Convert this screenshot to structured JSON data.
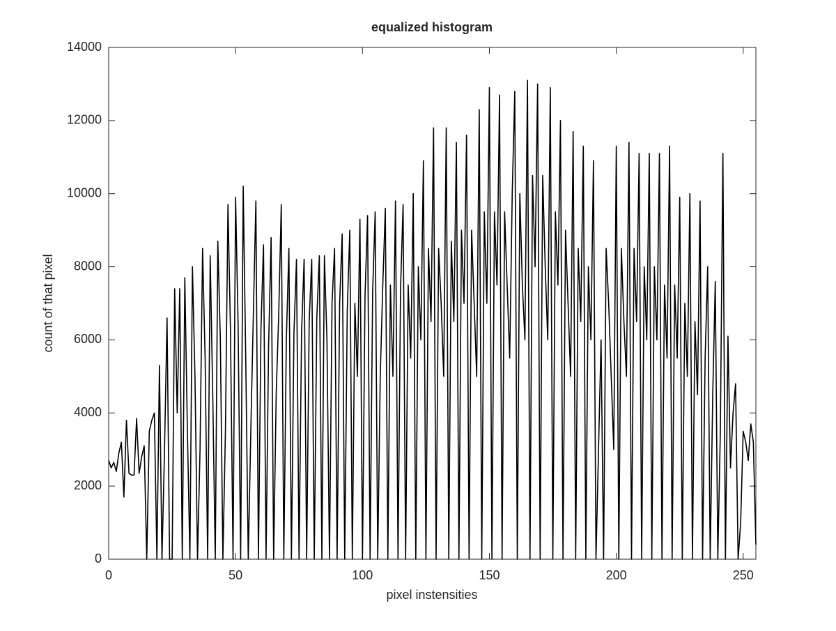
{
  "chart_data": {
    "type": "line",
    "title": "equalized histogram",
    "x_label": "pixel instensities",
    "y_label": "count of that pixel",
    "color": "#000000",
    "xlim": [
      0,
      255
    ],
    "xticks": [
      0,
      50,
      100,
      150,
      200,
      250
    ],
    "ylim": [
      0,
      14000
    ],
    "yticks": [
      0,
      2000,
      4000,
      6000,
      8000,
      10000,
      12000,
      14000
    ],
    "grid": false,
    "x": [
      0,
      1,
      2,
      3,
      4,
      5,
      6,
      7,
      8,
      9,
      10,
      11,
      12,
      13,
      14,
      15,
      16,
      17,
      18,
      19,
      20,
      21,
      22,
      23,
      24,
      25,
      26,
      27,
      28,
      29,
      30,
      31,
      32,
      33,
      34,
      35,
      36,
      37,
      38,
      39,
      40,
      41,
      42,
      43,
      44,
      45,
      46,
      47,
      48,
      49,
      50,
      51,
      52,
      53,
      54,
      55,
      56,
      57,
      58,
      59,
      60,
      61,
      62,
      63,
      64,
      65,
      66,
      67,
      68,
      69,
      70,
      71,
      72,
      73,
      74,
      75,
      76,
      77,
      78,
      79,
      80,
      81,
      82,
      83,
      84,
      85,
      86,
      87,
      88,
      89,
      90,
      91,
      92,
      93,
      94,
      95,
      96,
      97,
      98,
      99,
      100,
      101,
      102,
      103,
      104,
      105,
      106,
      107,
      108,
      109,
      110,
      111,
      112,
      113,
      114,
      115,
      116,
      117,
      118,
      119,
      120,
      121,
      122,
      123,
      124,
      125,
      126,
      127,
      128,
      129,
      130,
      131,
      132,
      133,
      134,
      135,
      136,
      137,
      138,
      139,
      140,
      141,
      142,
      143,
      144,
      145,
      146,
      147,
      148,
      149,
      150,
      151,
      152,
      153,
      154,
      155,
      156,
      157,
      158,
      159,
      160,
      161,
      162,
      163,
      164,
      165,
      166,
      167,
      168,
      169,
      170,
      171,
      172,
      173,
      174,
      175,
      176,
      177,
      178,
      179,
      180,
      181,
      182,
      183,
      184,
      185,
      186,
      187,
      188,
      189,
      190,
      191,
      192,
      193,
      194,
      195,
      196,
      197,
      198,
      199,
      200,
      201,
      202,
      203,
      204,
      205,
      206,
      207,
      208,
      209,
      210,
      211,
      212,
      213,
      214,
      215,
      216,
      217,
      218,
      219,
      220,
      221,
      222,
      223,
      224,
      225,
      226,
      227,
      228,
      229,
      230,
      231,
      232,
      233,
      234,
      235,
      236,
      237,
      238,
      239,
      240,
      241,
      242,
      243,
      244,
      245,
      246,
      247,
      248,
      249,
      250,
      251,
      252,
      253,
      254,
      255
    ],
    "values": [
      2700,
      2500,
      2650,
      2400,
      2900,
      3200,
      1700,
      3800,
      2350,
      2300,
      2300,
      3850,
      2350,
      2800,
      3100,
      0,
      3500,
      3800,
      4000,
      0,
      5300,
      0,
      3000,
      6600,
      0,
      0,
      7400,
      4000,
      7400,
      0,
      7700,
      3600,
      0,
      8000,
      5000,
      0,
      3000,
      8500,
      5500,
      0,
      8300,
      4500,
      0,
      8700,
      6000,
      0,
      3500,
      9700,
      6200,
      0,
      9900,
      6400,
      0,
      10200,
      5500,
      0,
      3500,
      6700,
      9800,
      0,
      6300,
      8600,
      0,
      5800,
      8800,
      0,
      4500,
      6700,
      9700,
      0,
      6000,
      8500,
      0,
      6200,
      8200,
      0,
      6200,
      8200,
      0,
      6500,
      8200,
      0,
      6600,
      8300,
      0,
      8300,
      6000,
      0,
      7000,
      8500,
      0,
      7000,
      8900,
      0,
      6800,
      9000,
      0,
      7000,
      5000,
      9300,
      0,
      7200,
      9400,
      0,
      7300,
      9500,
      0,
      5000,
      7500,
      9600,
      0,
      7500,
      5000,
      9800,
      0,
      7400,
      9700,
      0,
      7500,
      5500,
      10000,
      0,
      8000,
      6000,
      10900,
      0,
      8500,
      6500,
      11800,
      0,
      8500,
      7000,
      5000,
      11800,
      0,
      8700,
      6500,
      11400,
      0,
      9000,
      7000,
      11600,
      0,
      9000,
      7000,
      5000,
      12300,
      0,
      9500,
      7000,
      12900,
      0,
      9500,
      7500,
      12700,
      0,
      9500,
      7500,
      5500,
      10000,
      12800,
      0,
      10000,
      7500,
      6000,
      13100,
      0,
      10500,
      8000,
      13000,
      0,
      10500,
      8000,
      6000,
      12900,
      0,
      9500,
      7500,
      12000,
      0,
      9000,
      7000,
      5000,
      11700,
      0,
      8500,
      6500,
      11300,
      0,
      8000,
      6000,
      10900,
      0,
      3000,
      6000,
      0,
      8500,
      7000,
      5000,
      3000,
      11300,
      0,
      8500,
      6500,
      5000,
      11400,
      0,
      8500,
      6500,
      11100,
      0,
      8000,
      6000,
      11100,
      0,
      8000,
      6000,
      11100,
      0,
      7500,
      5500,
      11300,
      0,
      7500,
      5500,
      9900,
      0,
      7000,
      5000,
      10000,
      0,
      6500,
      4500,
      9800,
      0,
      5500,
      8000,
      0,
      4500,
      7600,
      0,
      3500,
      11100,
      0,
      6100,
      2500,
      4000,
      4800,
      0,
      1000,
      3500,
      3200,
      2700,
      3700,
      3200,
      400
    ]
  }
}
